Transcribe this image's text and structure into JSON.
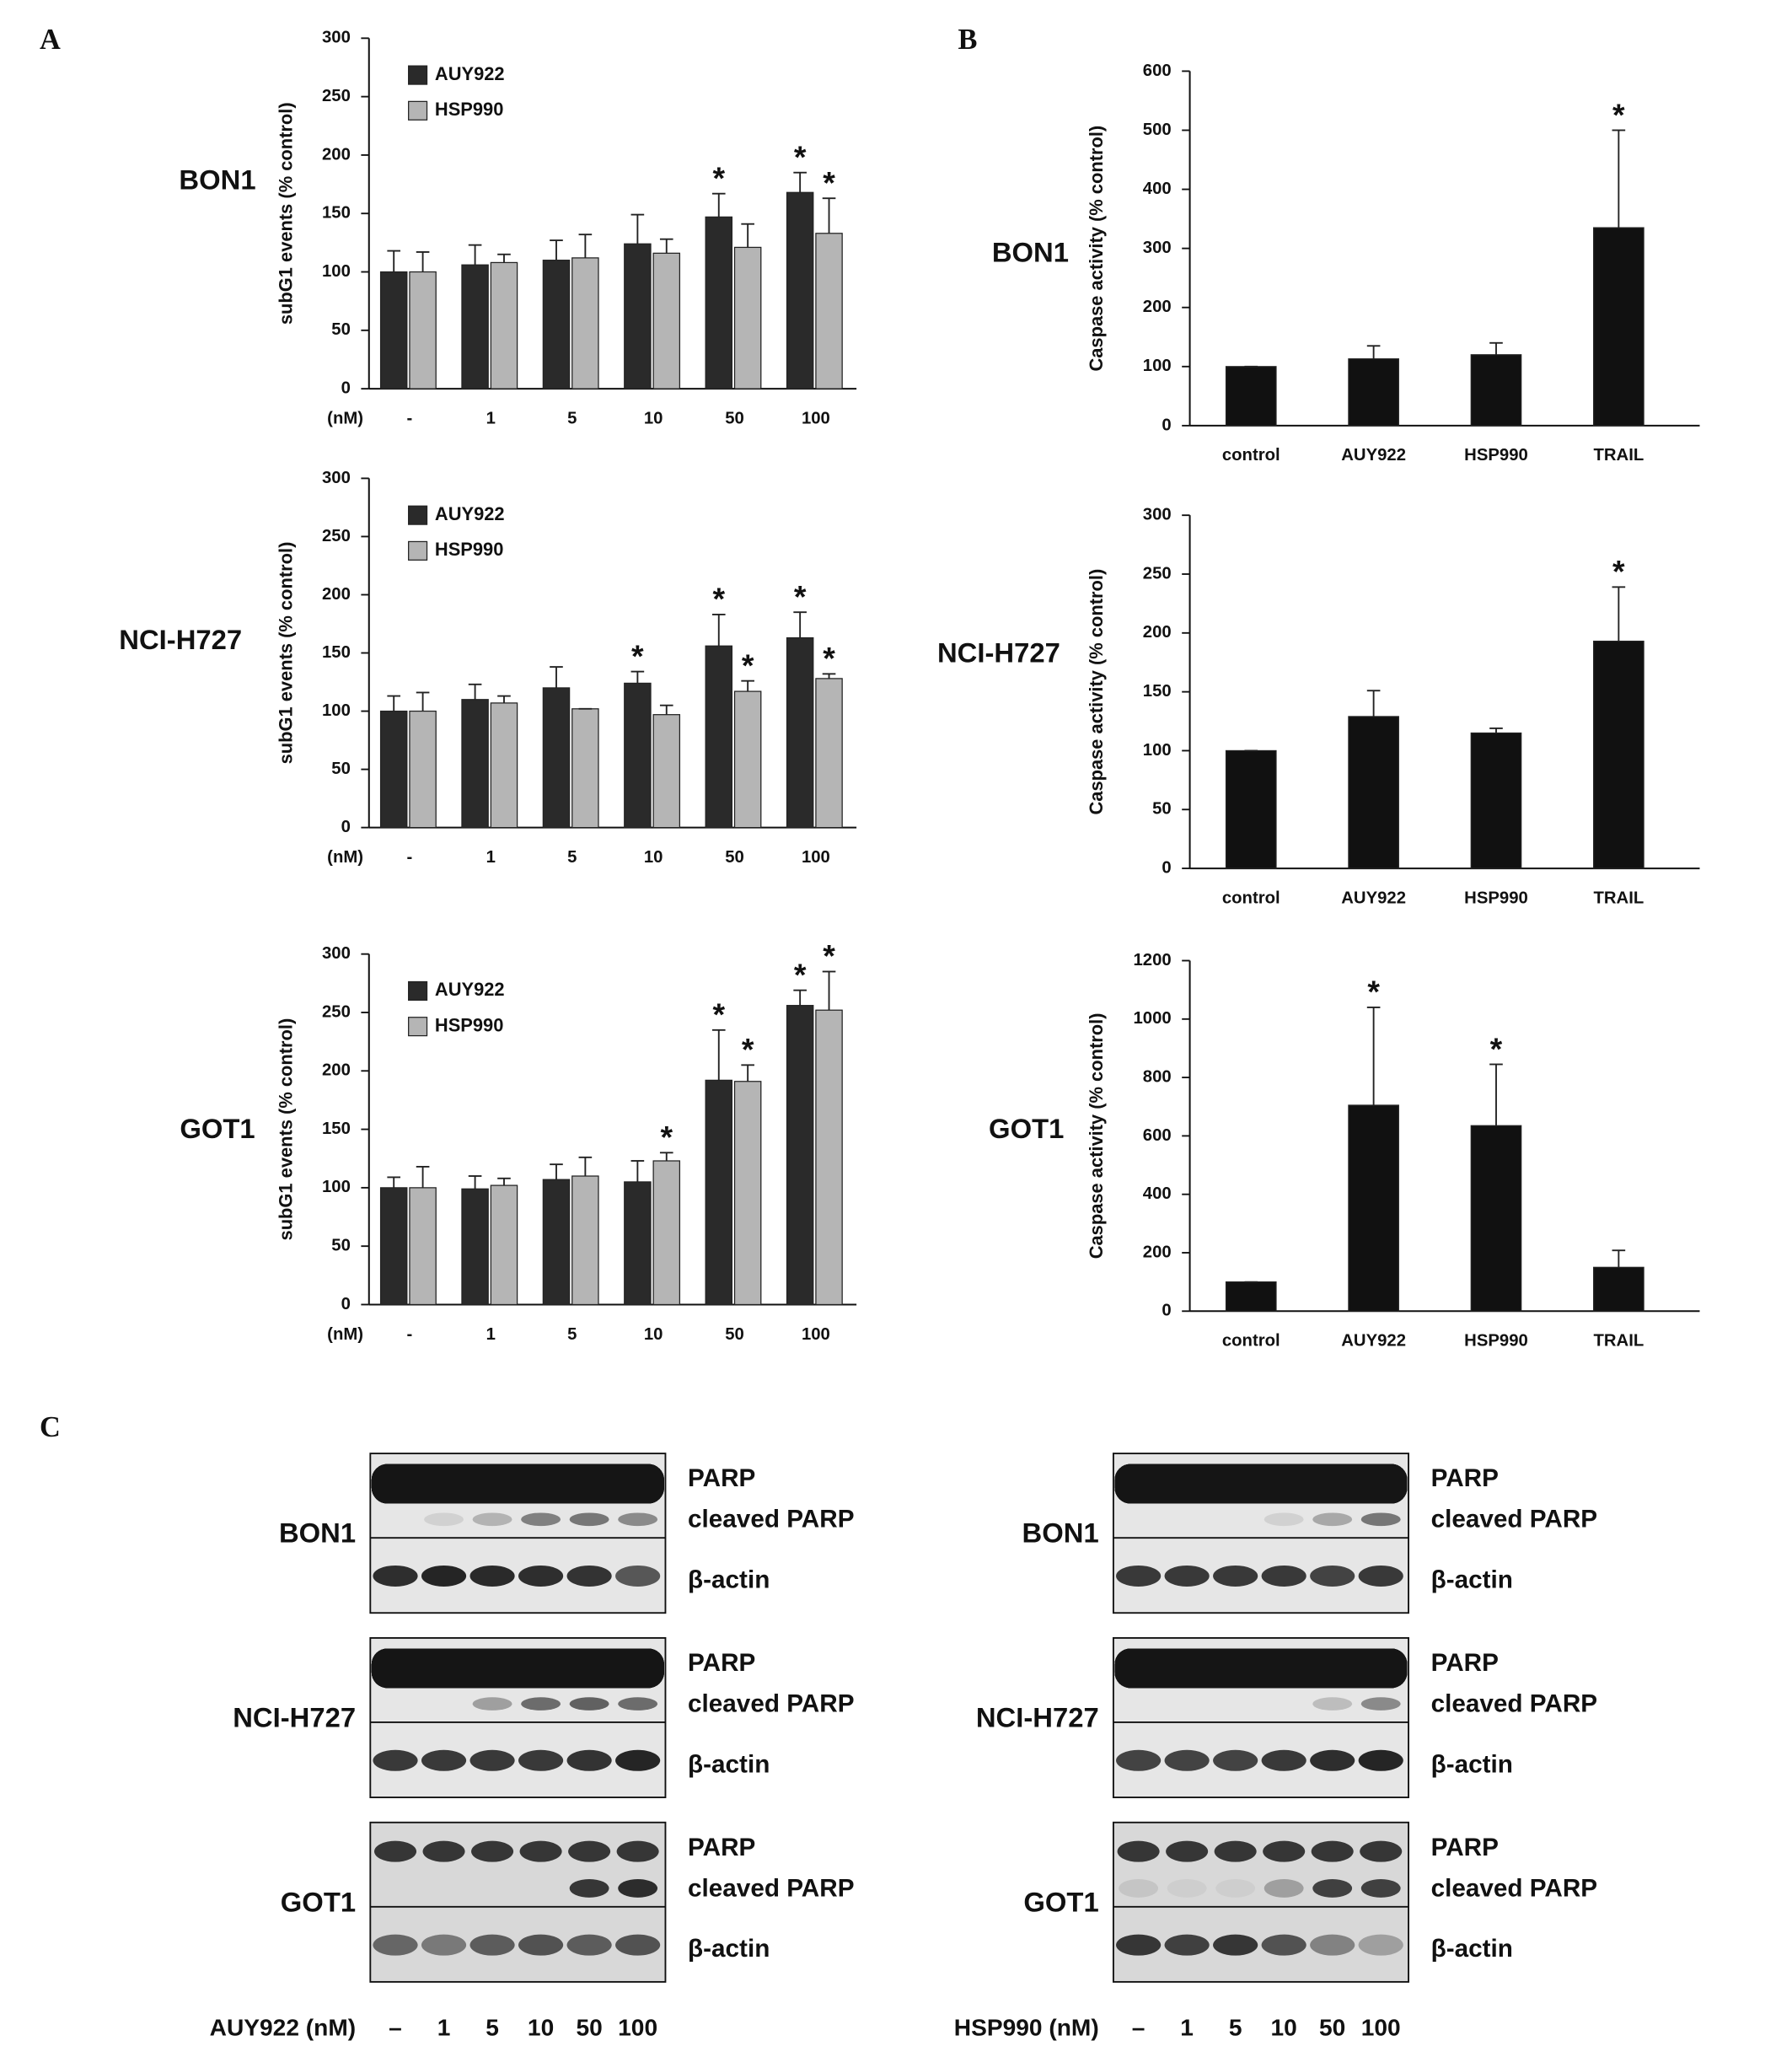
{
  "panel_labels": [
    "A",
    "B",
    "C"
  ],
  "chart_data": [
    {
      "type": "bar",
      "title": "BON1",
      "ylabel": "subG1 events (% control)",
      "xlabel": "(nM)",
      "categories": [
        "-",
        "1",
        "5",
        "10",
        "50",
        "100"
      ],
      "ylim": [
        0,
        300
      ],
      "yticks": [
        0,
        50,
        100,
        150,
        200,
        250,
        300
      ],
      "series": [
        {
          "name": "AUY922",
          "color": "#2a2a2a",
          "values": [
            100,
            106,
            110,
            124,
            147,
            168
          ],
          "errors": [
            18,
            17,
            17,
            25,
            20,
            17
          ],
          "annotations": [
            null,
            null,
            null,
            null,
            "*",
            "*"
          ]
        },
        {
          "name": "HSP990",
          "color": "#b5b5b5",
          "values": [
            100,
            108,
            112,
            116,
            121,
            133
          ],
          "errors": [
            17,
            7,
            20,
            12,
            20,
            30
          ],
          "annotations": [
            null,
            null,
            null,
            null,
            null,
            "*"
          ]
        }
      ]
    },
    {
      "type": "bar",
      "title": "NCI-H727",
      "ylabel": "subG1 events (% control)",
      "xlabel": "(nM)",
      "categories": [
        "-",
        "1",
        "5",
        "10",
        "50",
        "100"
      ],
      "ylim": [
        0,
        300
      ],
      "yticks": [
        0,
        50,
        100,
        150,
        200,
        250,
        300
      ],
      "series": [
        {
          "name": "AUY922",
          "color": "#2a2a2a",
          "values": [
            100,
            110,
            120,
            124,
            156,
            163
          ],
          "errors": [
            13,
            13,
            18,
            10,
            27,
            22
          ],
          "annotations": [
            null,
            null,
            null,
            "*",
            "*",
            "*"
          ]
        },
        {
          "name": "HSP990",
          "color": "#b5b5b5",
          "values": [
            100,
            107,
            102,
            97,
            117,
            128
          ],
          "errors": [
            16,
            6,
            0,
            8,
            9,
            4
          ],
          "annotations": [
            null,
            null,
            null,
            null,
            "*",
            "*"
          ]
        }
      ]
    },
    {
      "type": "bar",
      "title": "GOT1",
      "ylabel": "subG1 events (% control)",
      "xlabel": "(nM)",
      "categories": [
        "-",
        "1",
        "5",
        "10",
        "50",
        "100"
      ],
      "ylim": [
        0,
        300
      ],
      "yticks": [
        0,
        50,
        100,
        150,
        200,
        250,
        300
      ],
      "series": [
        {
          "name": "AUY922",
          "color": "#2a2a2a",
          "values": [
            100,
            99,
            107,
            105,
            192,
            256
          ],
          "errors": [
            9,
            11,
            13,
            18,
            43,
            13
          ],
          "annotations": [
            null,
            null,
            null,
            null,
            "*",
            "*"
          ]
        },
        {
          "name": "HSP990",
          "color": "#b5b5b5",
          "values": [
            100,
            102,
            110,
            123,
            191,
            252
          ],
          "errors": [
            18,
            6,
            16,
            7,
            14,
            33
          ],
          "annotations": [
            null,
            null,
            null,
            "*",
            "*",
            "*"
          ]
        }
      ]
    },
    {
      "type": "bar",
      "title": "BON1",
      "ylabel": "Caspase activity (% control)",
      "categories": [
        "control",
        "AUY922",
        "HSP990",
        "TRAIL"
      ],
      "ylim": [
        0,
        600
      ],
      "yticks": [
        0,
        100,
        200,
        300,
        400,
        500,
        600
      ],
      "color": "#111111",
      "values": [
        100,
        113,
        120,
        335
      ],
      "errors": [
        0,
        22,
        20,
        165
      ],
      "annotations": [
        null,
        null,
        null,
        "*"
      ]
    },
    {
      "type": "bar",
      "title": "NCI-H727",
      "ylabel": "Caspase activity (% control)",
      "categories": [
        "control",
        "AUY922",
        "HSP990",
        "TRAIL"
      ],
      "ylim": [
        0,
        300
      ],
      "yticks": [
        0,
        50,
        100,
        150,
        200,
        250,
        300
      ],
      "color": "#111111",
      "values": [
        100,
        129,
        115,
        193
      ],
      "errors": [
        0,
        22,
        4,
        46
      ],
      "annotations": [
        null,
        null,
        null,
        "*"
      ]
    },
    {
      "type": "bar",
      "title": "GOT1",
      "ylabel": "Caspase activity (% control)",
      "categories": [
        "control",
        "AUY922",
        "HSP990",
        "TRAIL"
      ],
      "ylim": [
        0,
        1200
      ],
      "yticks": [
        0,
        200,
        400,
        600,
        800,
        1000,
        1200
      ],
      "color": "#111111",
      "values": [
        100,
        705,
        635,
        150
      ],
      "errors": [
        0,
        335,
        210,
        58
      ],
      "annotations": [
        null,
        "*",
        "*",
        null
      ]
    }
  ],
  "blots": [
    {
      "treatment": "AUY922 (nM)",
      "lanes": [
        "–",
        "1",
        "5",
        "10",
        "50",
        "100"
      ],
      "rows": [
        {
          "cell_line": "BON1",
          "proteins": [
            "PARP",
            "cleaved PARP",
            "β-actin"
          ]
        },
        {
          "cell_line": "NCI-H727",
          "proteins": [
            "PARP",
            "cleaved PARP",
            "β-actin"
          ]
        },
        {
          "cell_line": "GOT1",
          "proteins": [
            "PARP",
            "cleaved PARP",
            "β-actin"
          ]
        }
      ]
    },
    {
      "treatment": "HSP990 (nM)",
      "lanes": [
        "–",
        "1",
        "5",
        "10",
        "50",
        "100"
      ],
      "rows": [
        {
          "cell_line": "BON1",
          "proteins": [
            "PARP",
            "cleaved PARP",
            "β-actin"
          ]
        },
        {
          "cell_line": "NCI-H727",
          "proteins": [
            "PARP",
            "cleaved PARP",
            "β-actin"
          ]
        },
        {
          "cell_line": "GOT1",
          "proteins": [
            "PARP",
            "cleaved PARP",
            "β-actin"
          ]
        }
      ]
    }
  ]
}
